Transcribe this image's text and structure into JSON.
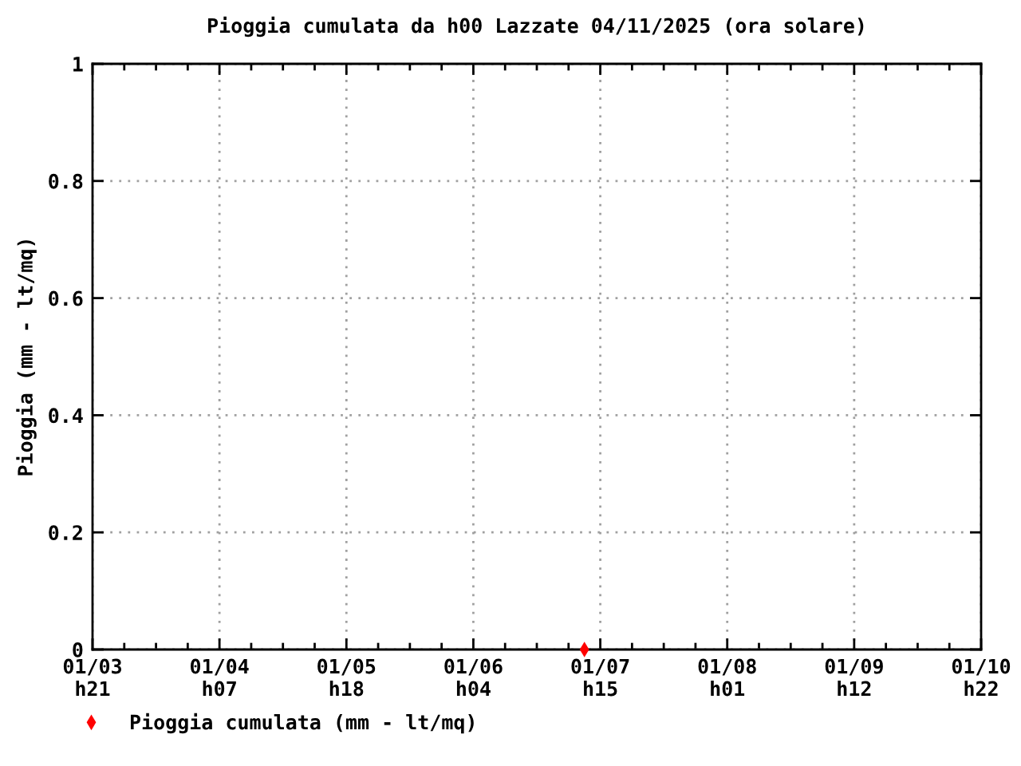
{
  "chart_data": {
    "type": "scatter",
    "title": "Pioggia cumulata da h00 Lazzate 04/11/2025 (ora solare)",
    "ylabel": "Pioggia (mm - lt/mq)",
    "categories": [
      "01/03\nh21",
      null,
      null,
      null,
      null,
      null,
      null,
      null,
      "01/04\nh07",
      null,
      null,
      null,
      null,
      null,
      null,
      null,
      "01/05\nh18",
      null,
      null,
      null,
      null,
      null,
      null,
      null,
      "01/06\nh04",
      null,
      null,
      null,
      null,
      null,
      null,
      null,
      "01/07\nh15",
      null,
      null,
      null,
      null,
      null,
      null,
      null,
      "01/08\nh01",
      null,
      null,
      null,
      null,
      null,
      null,
      null,
      "01/09\nh12",
      null,
      null,
      null,
      null,
      null,
      null,
      null,
      "01/10\nh22"
    ],
    "series": [
      {
        "name": "Pioggia cumulata (mm - lt/mq)",
        "color": "#ff0000",
        "values": [
          null,
          null,
          null,
          null,
          null,
          null,
          null,
          null,
          null,
          null,
          null,
          null,
          null,
          null,
          null,
          null,
          null,
          null,
          null,
          null,
          null,
          null,
          null,
          null,
          null,
          null,
          null,
          null,
          null,
          null,
          null,
          0,
          null,
          null,
          null,
          null,
          null,
          null,
          null,
          null,
          null,
          null,
          null,
          null,
          null,
          null,
          null,
          null,
          null,
          null,
          null,
          null,
          null,
          null,
          null,
          null,
          null
        ]
      }
    ],
    "ylim": [
      0,
      1
    ],
    "yticks": [
      0,
      0.2,
      0.4,
      0.6,
      0.8,
      1
    ],
    "grid": true,
    "legend": "bottom",
    "marker": "diamond"
  }
}
